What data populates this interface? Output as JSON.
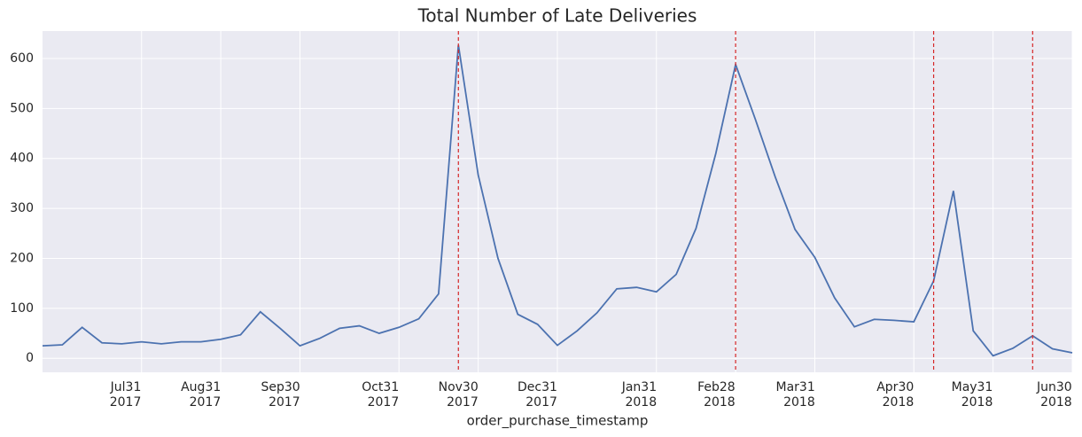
{
  "chart_data": {
    "type": "line",
    "title": "Total Number of Late Deliveries",
    "x_label": "order_purchase_timestamp",
    "x": [
      0,
      1,
      2,
      3,
      4,
      5,
      6,
      7,
      8,
      9,
      10,
      11,
      12,
      13,
      14,
      15,
      16,
      17,
      18,
      19,
      20,
      21,
      22,
      23,
      24,
      25,
      26,
      27,
      28,
      29,
      30,
      31,
      32,
      33,
      34,
      35,
      36,
      37,
      38,
      39,
      40,
      41,
      42,
      43,
      44,
      45,
      46,
      47,
      48,
      49,
      50,
      51,
      52
    ],
    "series": [
      {
        "color": "#4c72b0",
        "values": [
          25,
          27,
          62,
          31,
          29,
          33,
          29,
          33,
          33,
          38,
          47,
          93,
          60,
          25,
          40,
          60,
          65,
          50,
          62,
          79,
          129,
          627,
          367,
          200,
          88,
          68,
          26,
          55,
          91,
          139,
          142,
          133,
          168,
          260,
          410,
          588,
          478,
          363,
          258,
          202,
          121,
          63,
          78,
          76,
          73,
          155,
          335,
          55,
          5,
          20,
          45,
          19,
          11
        ]
      }
    ],
    "xlim": [
      0,
      52
    ],
    "xticks": [
      {
        "value": 5,
        "label": "Jul31\n2017"
      },
      {
        "value": 9,
        "label": "Aug31\n2017"
      },
      {
        "value": 13,
        "label": "Sep30\n2017"
      },
      {
        "value": 18,
        "label": "Oct31\n2017"
      },
      {
        "value": 22,
        "label": "Nov30\n2017"
      },
      {
        "value": 26,
        "label": "Dec31\n2017"
      },
      {
        "value": 31,
        "label": "Jan31\n2018"
      },
      {
        "value": 35,
        "label": "Feb28\n2018"
      },
      {
        "value": 39,
        "label": "Mar31\n2018"
      },
      {
        "value": 44,
        "label": "Apr30\n2018"
      },
      {
        "value": 48,
        "label": "May31\n2018"
      },
      {
        "value": 52,
        "label": "Jun30\n2018"
      }
    ],
    "ylim": [
      -28,
      655
    ],
    "yticks": [
      0,
      100,
      200,
      300,
      400,
      500,
      600
    ],
    "vlines": [
      21,
      35,
      45,
      50
    ],
    "vline_color": "#d62728",
    "grid": true
  }
}
